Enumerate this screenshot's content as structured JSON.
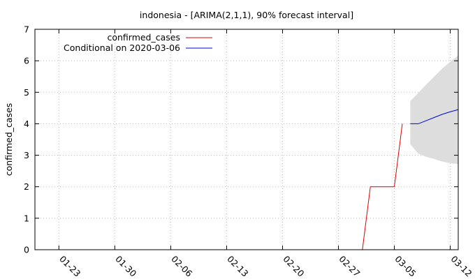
{
  "chart_data": {
    "type": "line",
    "title": "indonesia -  [ARIMA(2,1,1), 90% forecast interval]",
    "ylabel": "confirmed_cases",
    "xlabel": "",
    "ylim": [
      0,
      7
    ],
    "yticks": [
      0,
      1,
      2,
      3,
      4,
      5,
      6,
      7
    ],
    "x_range": [
      "2020-01-20",
      "2020-03-13"
    ],
    "xticks": [
      {
        "label": "01-23",
        "date": "2020-01-23"
      },
      {
        "label": "01-30",
        "date": "2020-01-30"
      },
      {
        "label": "02-06",
        "date": "2020-02-06"
      },
      {
        "label": "02-13",
        "date": "2020-02-13"
      },
      {
        "label": "02-20",
        "date": "2020-02-20"
      },
      {
        "label": "02-27",
        "date": "2020-02-27"
      },
      {
        "label": "03-05",
        "date": "2020-03-05"
      },
      {
        "label": "03-12",
        "date": "2020-03-12"
      }
    ],
    "grid": true,
    "legend_position": "top-left",
    "series": [
      {
        "name": "confirmed_cases",
        "color": "#dd0000",
        "points": [
          {
            "date": "2020-01-20",
            "value": 0
          },
          {
            "date": "2020-03-01",
            "value": 0
          },
          {
            "date": "2020-03-02",
            "value": 2
          },
          {
            "date": "2020-03-05",
            "value": 2
          },
          {
            "date": "2020-03-06",
            "value": 4
          }
        ]
      },
      {
        "name": "Conditional on 2020-03-06",
        "color": "#0000dd",
        "points": [
          {
            "date": "2020-03-07",
            "value": 4.0
          },
          {
            "date": "2020-03-08",
            "value": 4.0
          },
          {
            "date": "2020-03-09",
            "value": 4.1
          },
          {
            "date": "2020-03-10",
            "value": 4.2
          },
          {
            "date": "2020-03-11",
            "value": 4.3
          },
          {
            "date": "2020-03-12",
            "value": 4.38
          },
          {
            "date": "2020-03-13",
            "value": 4.45
          }
        ]
      }
    ],
    "interval": {
      "color": "#dddddd",
      "points": [
        {
          "date": "2020-03-07",
          "low": 3.35,
          "high": 4.72
        },
        {
          "date": "2020-03-08",
          "low": 3.05,
          "high": 4.98
        },
        {
          "date": "2020-03-09",
          "low": 2.95,
          "high": 5.25
        },
        {
          "date": "2020-03-10",
          "low": 2.88,
          "high": 5.5
        },
        {
          "date": "2020-03-11",
          "low": 2.8,
          "high": 5.75
        },
        {
          "date": "2020-03-12",
          "low": 2.75,
          "high": 5.97
        },
        {
          "date": "2020-03-13",
          "low": 2.72,
          "high": 6.17
        }
      ]
    }
  }
}
